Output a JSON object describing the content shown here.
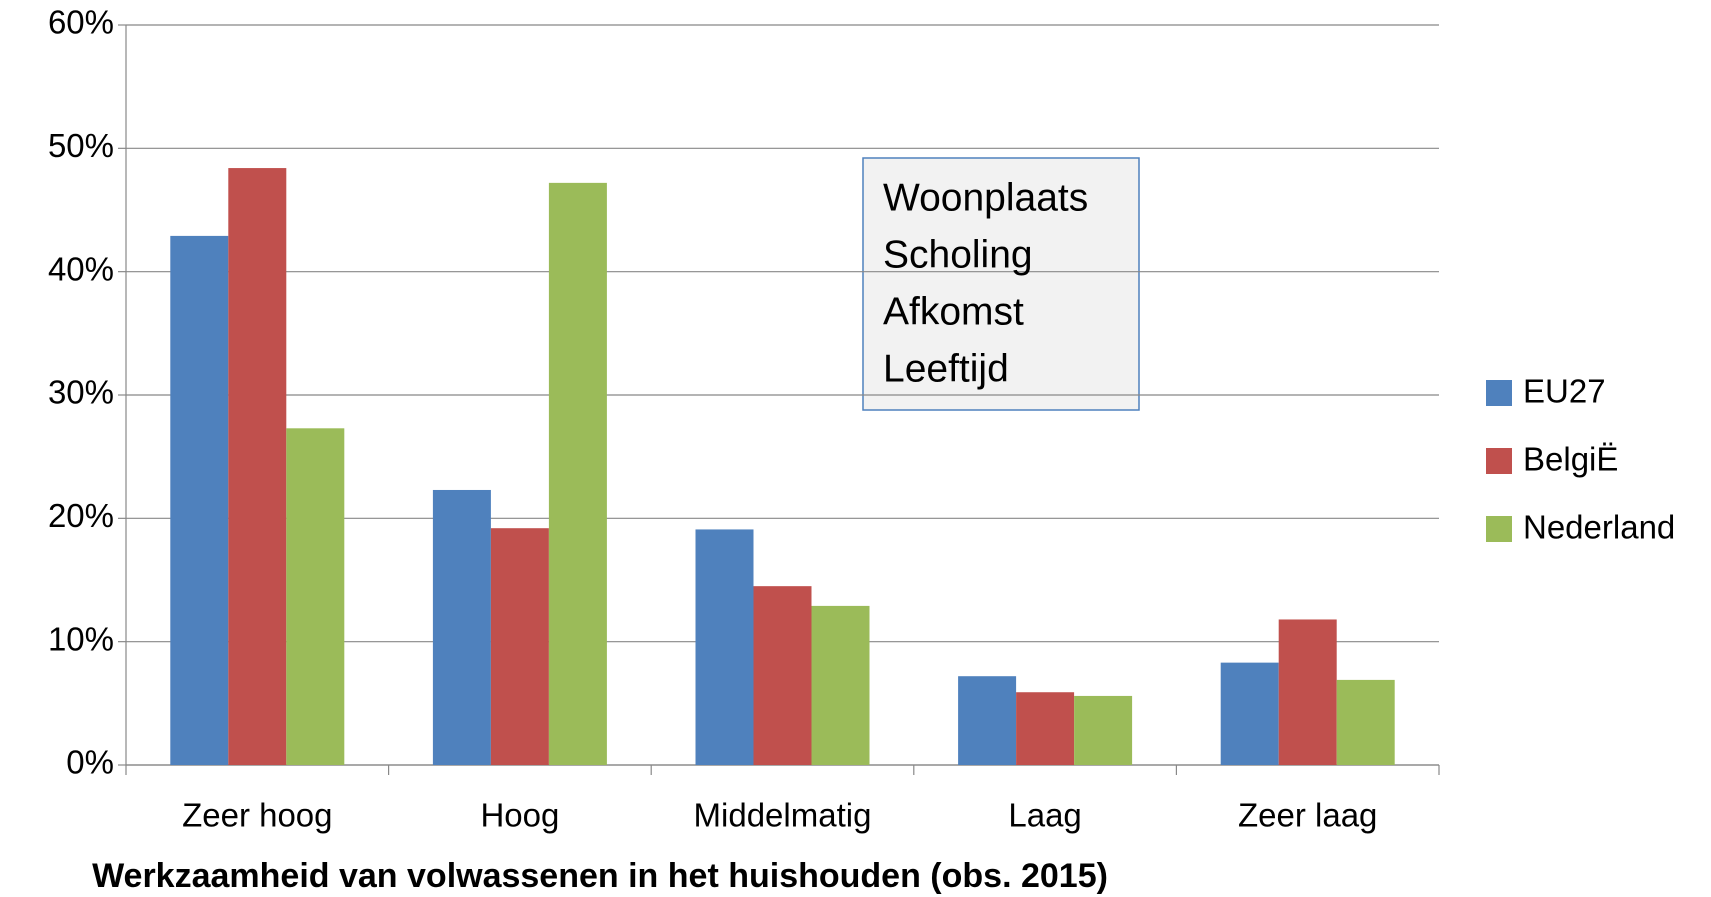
{
  "chart_data": {
    "type": "bar",
    "xlabel": "Werkzaamheid van volwassenen in het huishouden (obs. 2015)",
    "categories": [
      "Zeer hoog",
      "Hoog",
      "Middelmatig",
      "Laag",
      "Zeer laag"
    ],
    "series": [
      {
        "name": "EU27",
        "color": "#4f81bd",
        "values": [
          42.9,
          22.3,
          19.1,
          7.2,
          8.3
        ]
      },
      {
        "name": "BelgiË",
        "color": "#c0504d",
        "values": [
          48.4,
          19.2,
          14.5,
          5.9,
          11.8
        ]
      },
      {
        "name": "Nederland",
        "color": "#9bbb59",
        "values": [
          27.3,
          47.2,
          12.9,
          5.6,
          6.9
        ]
      }
    ],
    "ylim": [
      0,
      60
    ],
    "yticks": [
      {
        "value": 0,
        "label": "0%"
      },
      {
        "value": 10,
        "label": "10%"
      },
      {
        "value": 20,
        "label": "20%"
      },
      {
        "value": 30,
        "label": "30%"
      },
      {
        "value": 40,
        "label": "40%"
      },
      {
        "value": 50,
        "label": "50%"
      },
      {
        "value": 60,
        "label": "60%"
      }
    ],
    "grid": true,
    "legend": "right",
    "annotation": [
      "Woonplaats",
      "Scholing",
      "Afkomst",
      "Leeftijd"
    ]
  }
}
